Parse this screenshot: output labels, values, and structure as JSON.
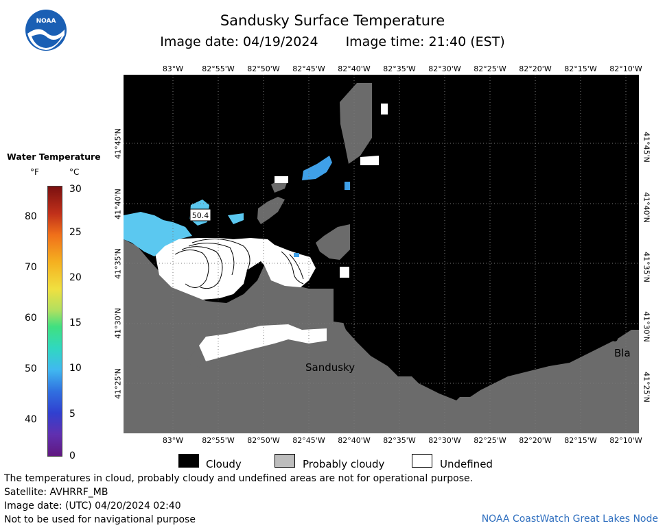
{
  "header": {
    "title": "Sandusky Surface Temperature",
    "image_date": "Image date: 04/19/2024",
    "image_time": "Image time: 21:40 (EST)"
  },
  "logo": {
    "text": "NOAA"
  },
  "map": {
    "lon_labels": [
      "83°W",
      "82°55'W",
      "82°50'W",
      "82°45'W",
      "82°40'W",
      "82°35'W",
      "82°30'W",
      "82°25'W",
      "82°20'W",
      "82°15'W",
      "82°10'W"
    ],
    "lat_labels": [
      "41°45'N",
      "41°40'N",
      "41°35'N",
      "41°30'N",
      "41°25'N"
    ],
    "places": {
      "sandusky": "Sandusky",
      "bla": "Bla"
    },
    "temp_label": "50.4",
    "colors": {
      "cloudy": "#000000",
      "land": "#6b6b6b",
      "water_warm": "#5bc8f0",
      "water_mid": "#3fa0e8",
      "undefined": "#ffffff"
    }
  },
  "scale": {
    "title": "Water Temperature",
    "unit_f": "°F",
    "unit_c": "°C",
    "f_ticks": [
      "80",
      "70",
      "60",
      "50",
      "40"
    ],
    "c_ticks": [
      "30",
      "25",
      "20",
      "15",
      "10",
      "5",
      "0"
    ]
  },
  "legend": {
    "cloudy": "Cloudy",
    "probably_cloudy": "Probably cloudy",
    "undefined": "Undefined"
  },
  "footer": {
    "note": "The temperatures in cloud, probably cloudy and undefined areas are not for operational purpose.",
    "satellite": "Satellite: AVHRRF_MB",
    "utc_date": "Image date: (UTC) 04/20/2024  02:40",
    "nav": "Not to be used for navigational purpose",
    "credit": "NOAA CoastWatch Great Lakes Node"
  }
}
